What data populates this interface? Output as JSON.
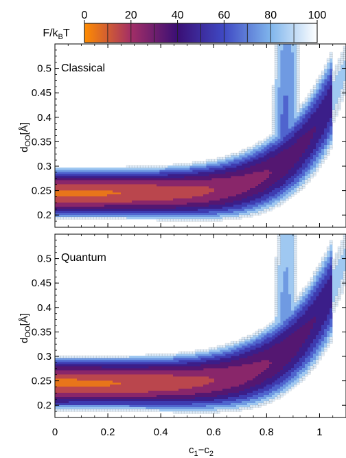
{
  "chart_data": {
    "type": "heatmap",
    "colorbar": {
      "label_main": "F/k",
      "label_sub": "B",
      "label_tail": "T",
      "ticks": [
        0,
        20,
        40,
        60,
        80,
        100
      ],
      "range": [
        0,
        100
      ],
      "colors": [
        "#ff8c00",
        "#a32e66",
        "#3a0f75",
        "#3f49c4",
        "#7fb5ec",
        "#ffffff"
      ]
    },
    "x_axis": {
      "label_main": "c",
      "label_sub1": "1",
      "label_mid": "−c",
      "label_sub2": "2",
      "ticks": [
        0,
        0.2,
        0.4,
        0.6,
        0.8,
        1
      ],
      "tick_labels": [
        "0",
        "0.2",
        "0.4",
        "0.6",
        "0.8",
        "1"
      ],
      "range": [
        0,
        1.1
      ]
    },
    "panels": [
      {
        "name": "Classical",
        "ylabel_main": "d",
        "ylabel_sub": "OO",
        "ylabel_unit": "[Å]",
        "y_ticks": [
          0.2,
          0.25,
          0.3,
          0.35,
          0.4,
          0.45,
          0.5
        ],
        "y_tick_labels": [
          "0.2",
          "0.25",
          "0.3",
          "0.35",
          "0.4",
          "0.45",
          "0.5"
        ],
        "y_range": [
          0.175,
          0.55
        ]
      },
      {
        "name": "Quantum",
        "ylabel_main": "d",
        "ylabel_sub": "OO",
        "ylabel_unit": "[Å]",
        "y_ticks": [
          0.2,
          0.25,
          0.3,
          0.35,
          0.4,
          0.45,
          0.5
        ],
        "y_tick_labels": [
          "0.2",
          "0.25",
          "0.3",
          "0.35",
          "0.4",
          "0.45",
          "0.5"
        ],
        "y_range": [
          0.175,
          0.55
        ]
      }
    ],
    "contour_levels": [
      10,
      20,
      30,
      40,
      50,
      60,
      70,
      80,
      90
    ]
  }
}
